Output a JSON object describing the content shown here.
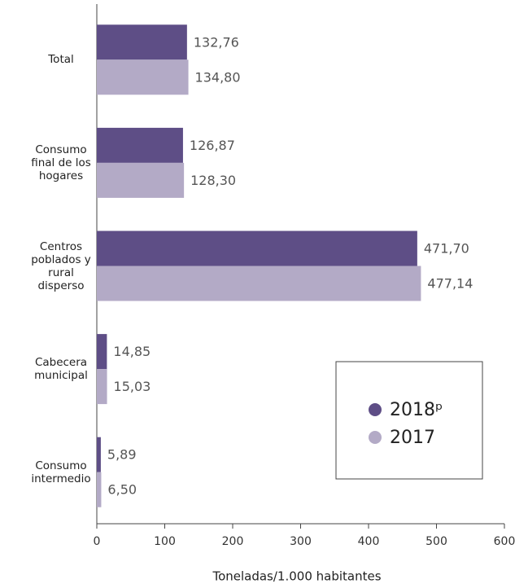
{
  "chart_data": {
    "type": "hbar",
    "categories": [
      "Total",
      "Consumo final de los hogares",
      "Centros poblados y rural disperso",
      "Cabecera municipal",
      "Consumo intermedio"
    ],
    "series": [
      {
        "name": "2018ᵖ",
        "color": "#5e4e86",
        "values": [
          132.76,
          126.87,
          471.7,
          14.85,
          5.89
        ],
        "value_labels": [
          "132,76",
          "126,87",
          "471,70",
          "14,85",
          "5,89"
        ]
      },
      {
        "name": "2017",
        "color": "#b3aac6",
        "values": [
          134.8,
          128.3,
          477.14,
          15.03,
          6.5
        ],
        "value_labels": [
          "134,80",
          "128,30",
          "477,14",
          "15,03",
          "6,50"
        ]
      }
    ],
    "xlabel": "Toneladas/1.000 habitantes",
    "xlim": [
      0,
      600
    ],
    "xticks": [
      0,
      100,
      200,
      300,
      400,
      500,
      600
    ],
    "legend": "lower right"
  }
}
